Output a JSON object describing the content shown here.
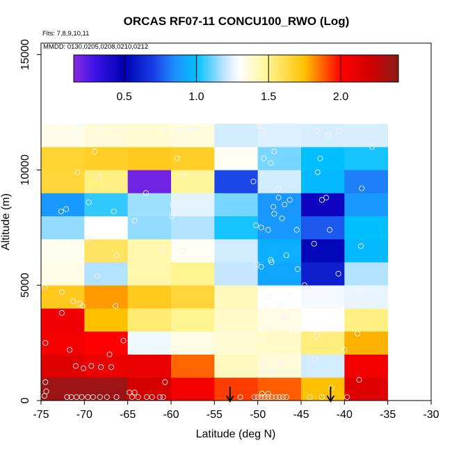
{
  "chart_data": {
    "type": "heatmap",
    "title": "ORCAS RF07-11 CONCU100_RWO (Log)",
    "subtitle_flights": "Flts: 7,8,9,10,11",
    "subtitle_dates": "MMDD: 0130,0205,0208,0210,0212",
    "xlabel": "Latitude (deg N)",
    "ylabel": "Altitude (m)",
    "xlim": [
      -75,
      -30
    ],
    "ylim": [
      0,
      15500
    ],
    "x_ticks": [
      -75,
      -70,
      -65,
      -60,
      -55,
      -50,
      -45,
      -40,
      -35,
      -30
    ],
    "x_tick_labels": [
      "-75",
      "-70",
      "-65",
      "-60",
      "-55",
      "-50",
      "-45",
      "-40",
      "-35",
      "-30"
    ],
    "y_ticks": [
      0,
      5000,
      10000,
      15000
    ],
    "y_tick_labels": [
      "0",
      "5000",
      "10000",
      "15000"
    ],
    "colorbar": {
      "range": [
        0.15,
        2.4
      ],
      "ticks": [
        0.5,
        1.0,
        1.5,
        2.0
      ],
      "tick_labels": [
        "0.5",
        "1.0",
        "1.5",
        "2.0"
      ],
      "stops": [
        {
          "v": 0.15,
          "c": "#8a2be2"
        },
        {
          "v": 0.3,
          "c": "#3b14e6"
        },
        {
          "v": 0.5,
          "c": "#0000b4"
        },
        {
          "v": 0.7,
          "c": "#1a3ce6"
        },
        {
          "v": 0.85,
          "c": "#1e90ff"
        },
        {
          "v": 1.0,
          "c": "#00bfff"
        },
        {
          "v": 1.2,
          "c": "#c6e6ff"
        },
        {
          "v": 1.3,
          "c": "#ffffff"
        },
        {
          "v": 1.5,
          "c": "#fff48f"
        },
        {
          "v": 1.75,
          "c": "#ffc000"
        },
        {
          "v": 2.0,
          "c": "#ff0000"
        },
        {
          "v": 2.2,
          "c": "#d40000"
        },
        {
          "v": 2.4,
          "c": "#8b1a1a"
        }
      ]
    },
    "lat_bin_edges": [
      -75,
      -70,
      -65,
      -60,
      -55,
      -50,
      -45,
      -40,
      -35
    ],
    "alt_bin_edges": [
      0,
      1000,
      2000,
      3000,
      4000,
      5000,
      6000,
      7000,
      8000,
      9000,
      10000,
      11000,
      12000
    ],
    "grid_values": [
      [
        2.35,
        2.35,
        2.2,
        2.05,
        1.92,
        1.88,
        1.75,
        2.15
      ],
      [
        2.15,
        2.1,
        2.1,
        1.87,
        1.42,
        1.37,
        1.22,
        2.05
      ],
      [
        2.05,
        2.0,
        1.27,
        1.35,
        1.38,
        1.4,
        1.53,
        1.77
      ],
      [
        2.07,
        1.75,
        1.55,
        1.5,
        1.4,
        1.35,
        1.3,
        1.52
      ],
      [
        1.7,
        1.8,
        1.7,
        1.65,
        1.42,
        1.3,
        1.28,
        1.26
      ],
      [
        1.35,
        1.18,
        1.45,
        1.5,
        1.2,
        0.92,
        0.6,
        1.18
      ],
      [
        1.33,
        1.58,
        1.45,
        1.32,
        1.22,
        0.95,
        0.52,
        0.98
      ],
      [
        1.15,
        1.3,
        1.15,
        1.18,
        1.02,
        0.88,
        0.75,
        1.0
      ],
      [
        0.88,
        1.05,
        1.16,
        1.25,
        1.12,
        0.87,
        0.45,
        0.88
      ],
      [
        1.65,
        1.52,
        0.2,
        1.48,
        0.72,
        1.22,
        0.98,
        0.82
      ],
      [
        1.66,
        1.68,
        1.7,
        1.68,
        1.32,
        1.12,
        1.0,
        1.02
      ],
      [
        1.34,
        1.37,
        1.38,
        1.36,
        1.22,
        1.24,
        1.23,
        1.23
      ]
    ],
    "sample_points": [
      [
        -74.6,
        200
      ],
      [
        -74.4,
        400
      ],
      [
        -72,
        150
      ],
      [
        -71.5,
        150
      ],
      [
        -70.9,
        150
      ],
      [
        -70.3,
        150
      ],
      [
        -69.6,
        150
      ],
      [
        -69,
        150
      ],
      [
        -68.2,
        150
      ],
      [
        -67.4,
        150
      ],
      [
        -66.3,
        150
      ],
      [
        -64.5,
        150
      ],
      [
        -63.8,
        150
      ],
      [
        -62.8,
        150
      ],
      [
        -62.2,
        150
      ],
      [
        -61.3,
        150
      ],
      [
        -60.9,
        150
      ],
      [
        -52,
        150
      ],
      [
        -50.4,
        150
      ],
      [
        -50,
        150
      ],
      [
        -49.6,
        150
      ],
      [
        -49.2,
        150
      ],
      [
        -48.8,
        150
      ],
      [
        -48.4,
        150
      ],
      [
        -47.9,
        150
      ],
      [
        -47.5,
        150
      ],
      [
        -47.1,
        150
      ],
      [
        -46.7,
        150
      ],
      [
        -44,
        150
      ],
      [
        -42.6,
        150
      ],
      [
        -41.5,
        150
      ],
      [
        -39.7,
        150
      ],
      [
        -74.5,
        800
      ],
      [
        -64.8,
        350
      ],
      [
        -64.2,
        350
      ],
      [
        -60.7,
        800
      ],
      [
        -49.5,
        300
      ],
      [
        -48.8,
        300
      ],
      [
        -41.5,
        550
      ],
      [
        -38.3,
        900
      ],
      [
        -74.5,
        2500
      ],
      [
        -72.6,
        3800
      ],
      [
        -71.7,
        2200
      ],
      [
        -71,
        1500
      ],
      [
        -70.1,
        1400
      ],
      [
        -69.2,
        1500
      ],
      [
        -68.1,
        1450
      ],
      [
        -66.9,
        1450
      ],
      [
        -67.1,
        2000
      ],
      [
        -65.5,
        2600
      ],
      [
        -63,
        2200
      ],
      [
        -49.8,
        1600
      ],
      [
        -49.2,
        1500
      ],
      [
        -48.3,
        1300
      ],
      [
        -47.4,
        1600
      ],
      [
        -47.2,
        1650
      ],
      [
        -49.4,
        2600
      ],
      [
        -48.6,
        3200
      ],
      [
        -47.1,
        3700
      ],
      [
        -46.8,
        3600
      ],
      [
        -45.6,
        3000
      ],
      [
        -43.4,
        1800
      ],
      [
        -43.2,
        2800
      ],
      [
        -40,
        2200
      ],
      [
        -40.9,
        3100
      ],
      [
        -38.5,
        2900
      ],
      [
        -74.6,
        4900
      ],
      [
        -72.6,
        4700
      ],
      [
        -71.3,
        4300
      ],
      [
        -70.5,
        4200
      ],
      [
        -70.2,
        4100
      ],
      [
        -66.4,
        4100
      ],
      [
        -48.8,
        4500
      ],
      [
        -48.9,
        4100
      ],
      [
        -47.3,
        4100
      ],
      [
        -46.3,
        4500
      ],
      [
        -45.4,
        5700
      ],
      [
        -44.6,
        5000
      ],
      [
        -40.7,
        5500
      ],
      [
        -38.4,
        4800
      ],
      [
        -38.8,
        4300
      ],
      [
        -50.1,
        5900
      ],
      [
        -49.6,
        5800
      ],
      [
        -48.4,
        6000
      ],
      [
        -46.7,
        6300
      ],
      [
        -43.5,
        6800
      ],
      [
        -38.1,
        6700
      ],
      [
        -48.5,
        6100
      ],
      [
        -68.5,
        5400
      ],
      [
        -71.4,
        6700
      ],
      [
        -69.2,
        7100
      ],
      [
        -69.5,
        7000
      ],
      [
        -66.3,
        6300
      ],
      [
        -66.6,
        8200
      ],
      [
        -64.2,
        7800
      ],
      [
        -58.7,
        6500
      ],
      [
        -59.9,
        8000
      ],
      [
        -59.8,
        8500
      ],
      [
        -61,
        6500
      ],
      [
        -50.2,
        7600
      ],
      [
        -49.6,
        7500
      ],
      [
        -48.1,
        8100
      ],
      [
        -46.9,
        8500
      ],
      [
        -47.2,
        7900
      ],
      [
        -48.8,
        7400
      ],
      [
        -48.2,
        8400
      ],
      [
        -47.6,
        8800
      ],
      [
        -46.3,
        8700
      ],
      [
        -45.5,
        7400
      ],
      [
        -42.6,
        8700
      ],
      [
        -41.7,
        7400
      ],
      [
        -42.1,
        8800
      ],
      [
        -69.5,
        8600
      ],
      [
        -72.1,
        8300
      ],
      [
        -72.7,
        8200
      ],
      [
        -47.6,
        9200
      ],
      [
        -62.9,
        9000
      ],
      [
        -58.6,
        9800
      ],
      [
        -59.3,
        10500
      ],
      [
        -68.3,
        9700
      ],
      [
        -70.8,
        9900
      ],
      [
        -68.8,
        10800
      ],
      [
        -50.5,
        9500
      ],
      [
        -48.5,
        10300
      ],
      [
        -49.3,
        10500
      ],
      [
        -48.1,
        10800
      ],
      [
        -43.1,
        9900
      ],
      [
        -42.8,
        10500
      ],
      [
        -38,
        9200
      ],
      [
        -36.8,
        11000
      ],
      [
        -72.3,
        11800
      ],
      [
        -70.4,
        11900
      ],
      [
        -68.1,
        11800
      ],
      [
        -57.9,
        11800
      ],
      [
        -57.5,
        11800
      ],
      [
        -57.1,
        11800
      ],
      [
        -58.9,
        11700
      ],
      [
        -60.5,
        11700
      ],
      [
        -49.9,
        11900
      ],
      [
        -49.4,
        11700
      ],
      [
        -43.2,
        11700
      ],
      [
        -41.9,
        11500
      ],
      [
        -40.6,
        11700
      ]
    ],
    "markers": [
      {
        "lat": -53.2,
        "label": "arrow"
      },
      {
        "lat": -41.6,
        "label": "arrow"
      }
    ]
  }
}
